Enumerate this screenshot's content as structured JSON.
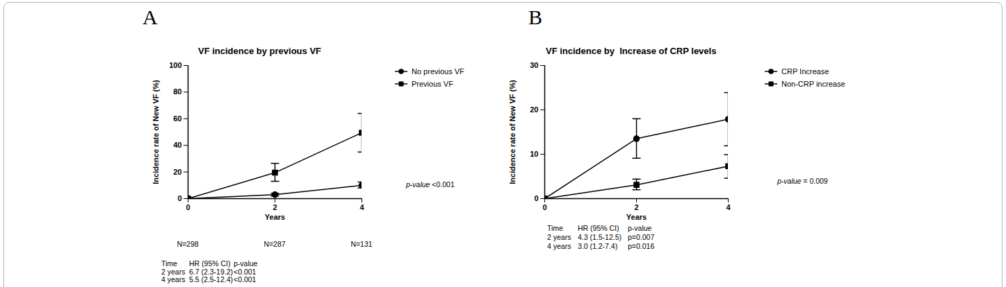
{
  "chart_data": [
    {
      "type": "line",
      "panel": "A",
      "title": "VF incidence by previous VF",
      "x_label": "Years",
      "y_label": "Incidence rate of New VF (%)",
      "x": [
        0,
        2,
        4
      ],
      "xlim": [
        0,
        4
      ],
      "xticks": [
        0,
        2,
        4
      ],
      "ylim": [
        0,
        100
      ],
      "yticks": [
        0,
        20,
        40,
        60,
        80,
        100
      ],
      "grid": false,
      "legend": "right",
      "series": [
        {
          "name": "No previous VF",
          "color": "#000000",
          "marker": "circle",
          "values": [
            0,
            3,
            10
          ],
          "error_low": [
            null,
            2,
            8
          ],
          "error_high": [
            null,
            4,
            12.5
          ]
        },
        {
          "name": "Previous VF",
          "color": "#000000",
          "marker": "square",
          "values": [
            0,
            19.5,
            49.5
          ],
          "error_low": [
            null,
            13,
            35
          ],
          "error_high": [
            null,
            26.5,
            64
          ]
        }
      ],
      "annotation": "p-value <0.001",
      "n_labels": [
        "N=298",
        "N=287",
        "N=131"
      ],
      "table": {
        "header": [
          "Time",
          "HR (95% CI)",
          "p-value"
        ],
        "rows": [
          [
            "2 years",
            "6.7 (2.3-19.2)",
            "<0.001"
          ],
          [
            "4 years",
            "5.5 (2.5-12.4)",
            "<0.001"
          ]
        ]
      }
    },
    {
      "type": "line",
      "panel": "B",
      "title": "VF incidence by  Increase of CRP levels",
      "x_label": "Years",
      "y_label": "Incidence rate of New VF (%)",
      "x": [
        0,
        2,
        4
      ],
      "xlim": [
        0,
        4
      ],
      "xticks": [
        0,
        2,
        4
      ],
      "ylim": [
        0,
        30
      ],
      "yticks": [
        0,
        10,
        20,
        30
      ],
      "grid": false,
      "legend": "right",
      "series": [
        {
          "name": "CRP Increase",
          "color": "#000000",
          "marker": "circle",
          "values": [
            0,
            13.5,
            17.9
          ],
          "error_low": [
            null,
            9.1,
            11.9
          ],
          "error_high": [
            null,
            18,
            23.9
          ]
        },
        {
          "name": "Non-CRP increase",
          "color": "#000000",
          "marker": "square",
          "values": [
            0,
            3.1,
            7.3
          ],
          "error_low": [
            null,
            2,
            4.6
          ],
          "error_high": [
            null,
            4.4,
            9.9
          ]
        }
      ],
      "annotation": "p-value = 0.009",
      "table": {
        "header": [
          "Time",
          "HR (95% CI)",
          "p-value"
        ],
        "rows": [
          [
            "2 years",
            "4.3 (1.5-12.5)",
            "p=0.007"
          ],
          [
            "4 years",
            "3.0 (1.2-7.4)",
            "p=0.016"
          ]
        ]
      }
    }
  ]
}
